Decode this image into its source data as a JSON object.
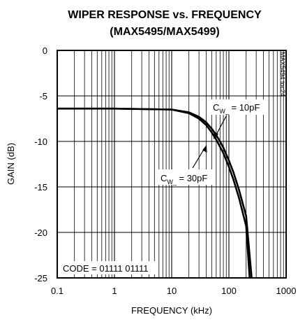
{
  "chart_data": {
    "type": "line",
    "title_line1": "WIPER RESPONSE vs. FREQUENCY",
    "title_line2": "(MAX5495/MAX5499)",
    "xlabel": "FREQUENCY (kHz)",
    "ylabel": "GAIN (dB)",
    "x_scale": "log",
    "xlim": [
      0.1,
      1000
    ],
    "ylim": [
      -25,
      0
    ],
    "x_ticks": [
      "0.1",
      "1",
      "10",
      "100",
      "1000"
    ],
    "y_ticks": [
      "0",
      "-5",
      "-10",
      "-15",
      "-20",
      "-25"
    ],
    "grid": true,
    "watermark": "MAX5494 toc24",
    "code_label": "CODE = 01111 01111",
    "series": [
      {
        "name_main": "C",
        "name_sub": "W_",
        "name_rest": " = 10pF",
        "x": [
          0.1,
          1,
          10,
          20,
          30,
          40,
          50,
          60,
          70,
          80,
          100,
          120,
          150,
          200,
          250
        ],
        "y": [
          -6.4,
          -6.4,
          -6.5,
          -6.8,
          -7.3,
          -7.9,
          -8.6,
          -9.3,
          -10.0,
          -10.7,
          -12.1,
          -13.4,
          -15.3,
          -18.2,
          -25
        ]
      },
      {
        "name_main": "C",
        "name_sub": "W_",
        "name_rest": " = 30pF",
        "x": [
          0.1,
          1,
          10,
          20,
          30,
          40,
          50,
          60,
          70,
          80,
          100,
          120,
          150,
          200,
          230
        ],
        "y": [
          -6.4,
          -6.4,
          -6.5,
          -6.9,
          -7.5,
          -8.2,
          -9.0,
          -9.8,
          -10.6,
          -11.3,
          -12.8,
          -14.2,
          -16.2,
          -19.3,
          -25
        ]
      }
    ]
  }
}
